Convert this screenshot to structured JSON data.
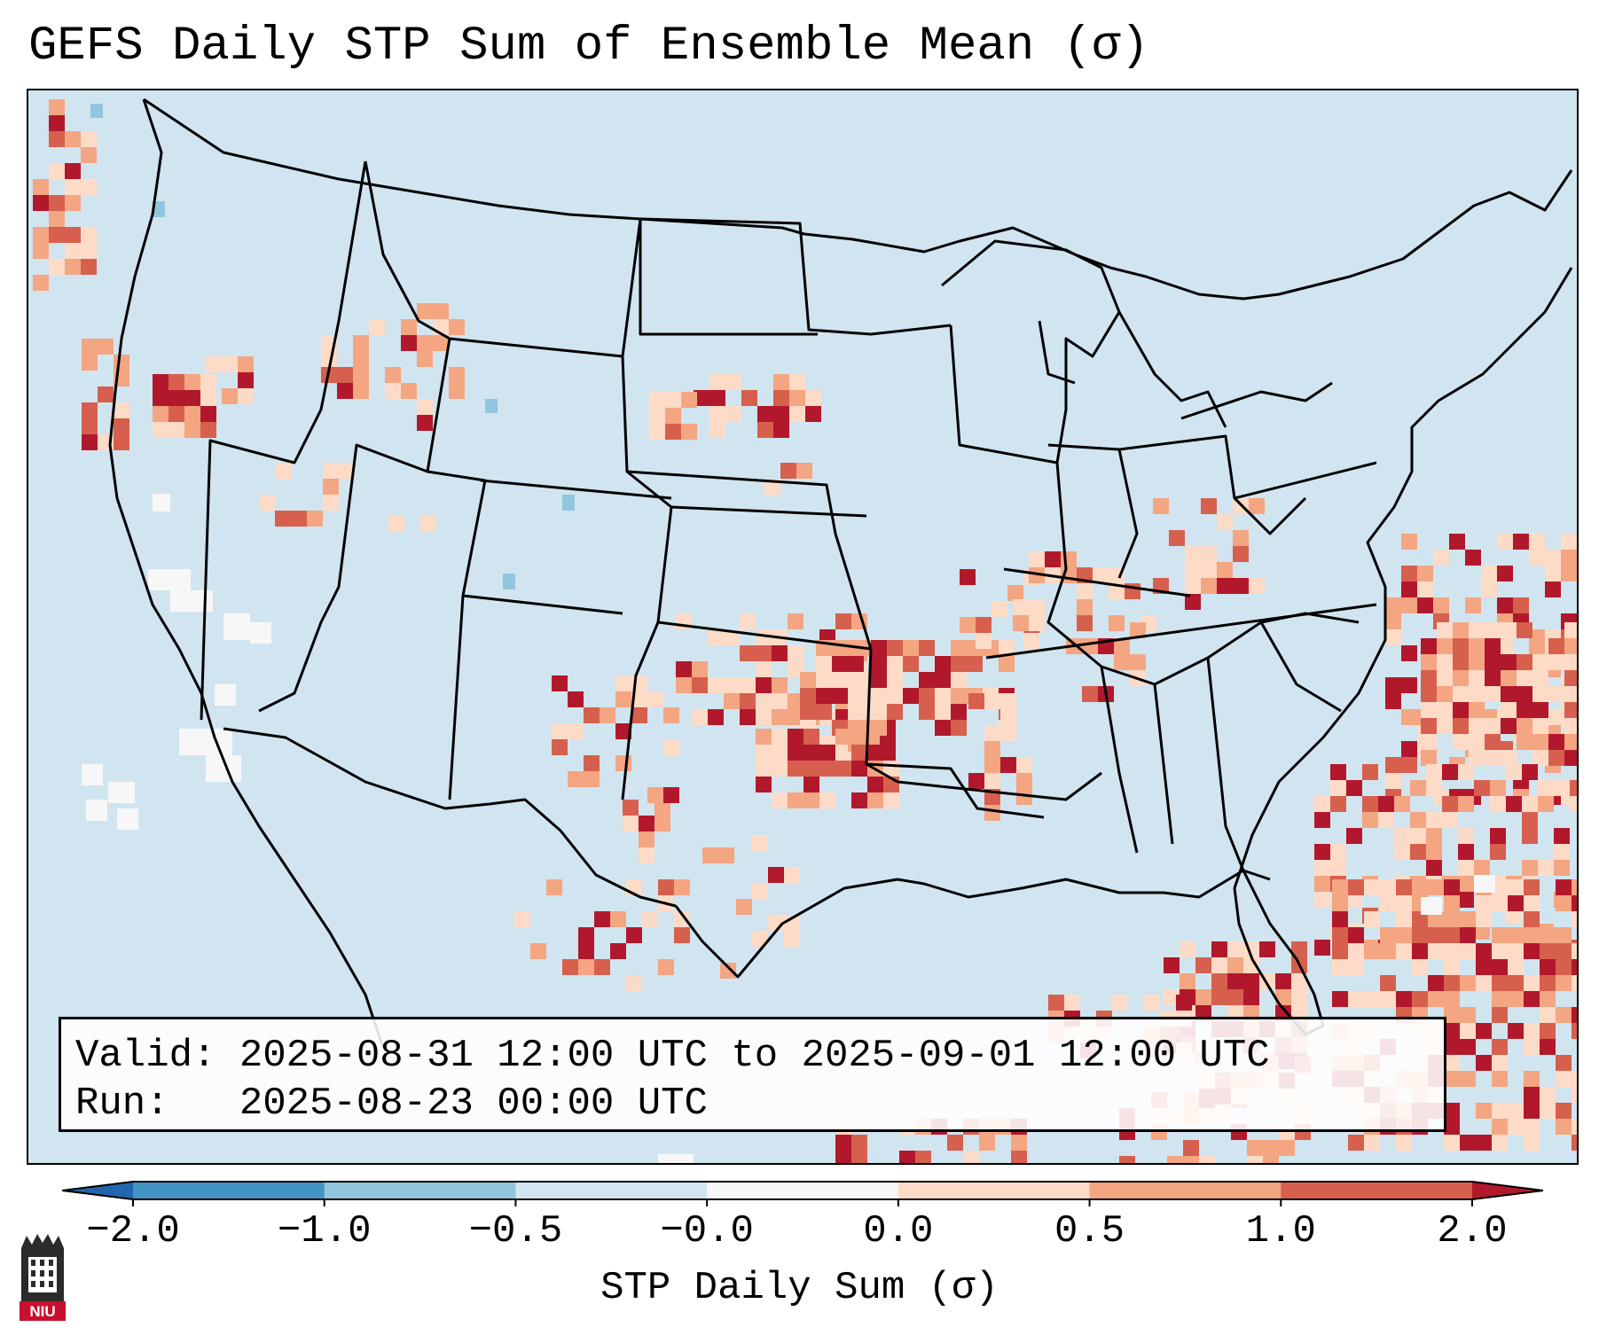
{
  "title": "GEFS Daily STP Sum of Ensemble Mean (σ)",
  "info": {
    "valid_label": "Valid:",
    "valid_value": "2025-08-31 12:00 UTC to 2025-09-01 12:00 UTC",
    "run_label": "Run:",
    "run_value": "2025-08-23 00:00 UTC"
  },
  "colorbar": {
    "label": "STP Daily Sum (σ)",
    "ticks": [
      "−2.0",
      "−1.0",
      "−0.5",
      "−0.0",
      "0.0",
      "0.5",
      "1.0",
      "2.0"
    ],
    "colors": [
      "#4393c3",
      "#92c5de",
      "#d1e5f0",
      "#f7f7f7",
      "#fddbc7",
      "#f4a582",
      "#d6604d"
    ],
    "under_color": "#2166ac",
    "over_color": "#b2182b"
  },
  "map": {
    "background_color": "#d1e5f0",
    "features": [
      "us-state-borders",
      "country-borders",
      "coastlines",
      "great-lakes"
    ]
  },
  "logo": {
    "text": "NIU"
  }
}
